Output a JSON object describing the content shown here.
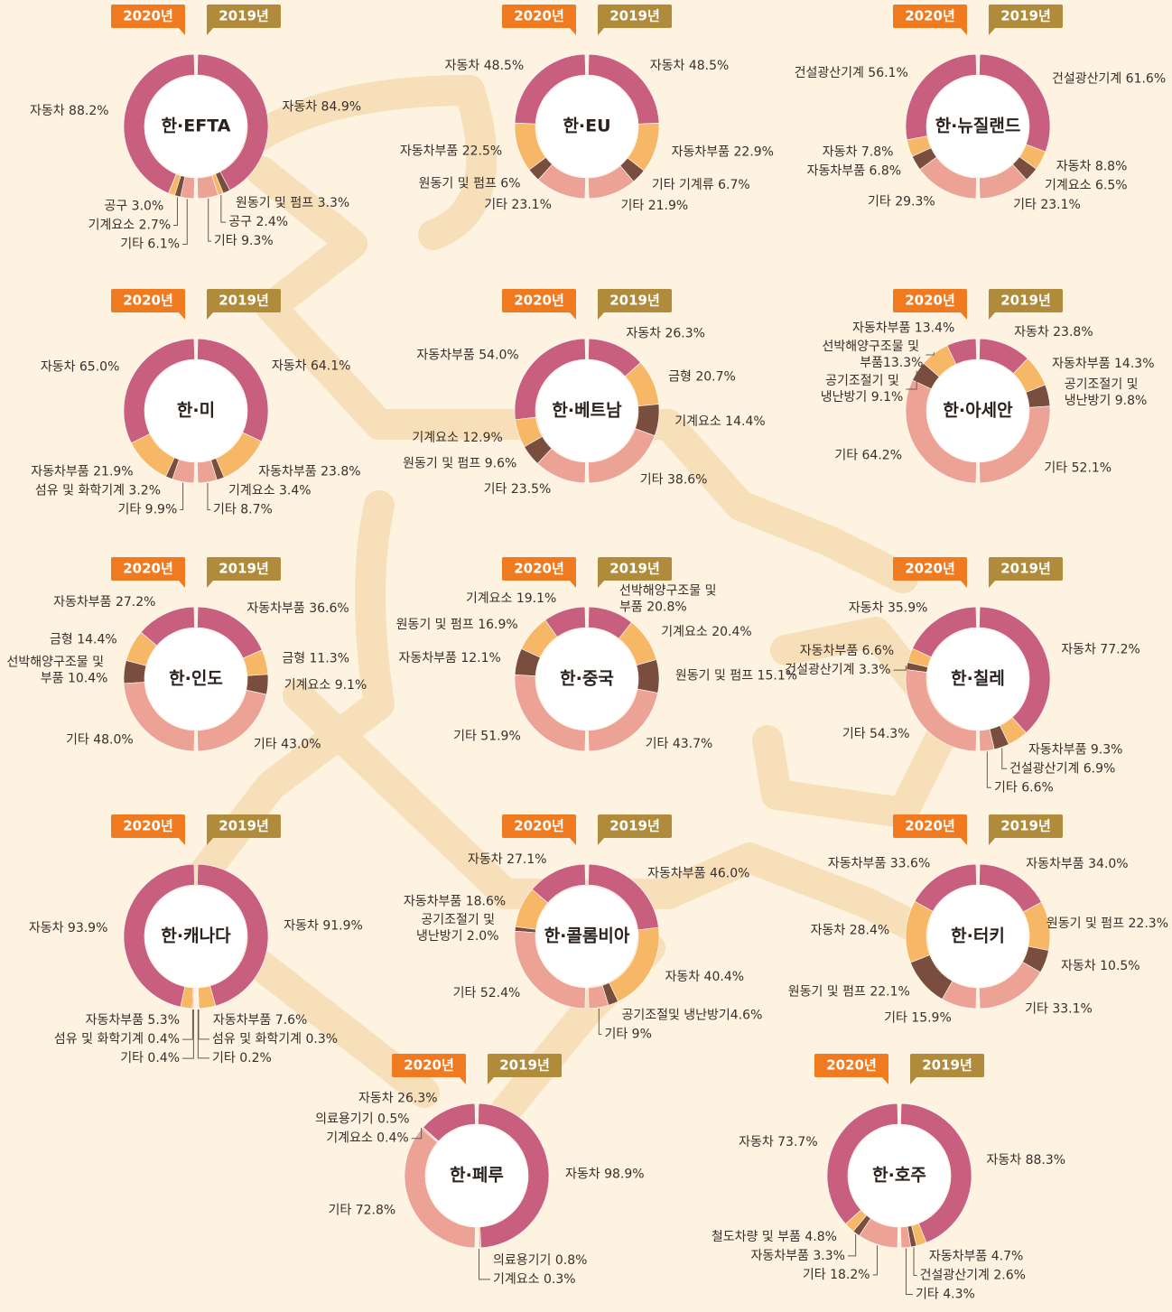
{
  "chart_data": [
    {
      "type": "split-donut",
      "title": "한·EFTA",
      "series": [
        {
          "name": "2020년",
          "color": "#f07a1f",
          "labels": [
            "자동차 88.2%",
            "공구 3.0%",
            "기계요소 2.7%",
            "기타 6.1%"
          ],
          "values": [
            88.2,
            3.0,
            2.7,
            6.1
          ],
          "colors": [
            "#c95f7f",
            "#f6b866",
            "#7a4e3f",
            "#eca295"
          ]
        },
        {
          "name": "2019년",
          "color": "#b08b3c",
          "labels": [
            "자동차 84.9%",
            "원동기 및 펌프 3.3%",
            "공구 2.4%",
            "기타 9.3%"
          ],
          "values": [
            84.9,
            3.3,
            2.4,
            9.3
          ],
          "colors": [
            "#c95f7f",
            "#7a4e3f",
            "#f6b866",
            "#eca295"
          ]
        }
      ]
    },
    {
      "type": "split-donut",
      "title": "한·EU",
      "series": [
        {
          "name": "2020년",
          "color": "#f07a1f",
          "labels": [
            "자동차 48.5%",
            "자동차부품 22.5%",
            "원동기 및 펌프 6%",
            "기타 23.1%"
          ],
          "values": [
            48.5,
            22.5,
            6,
            23.1
          ],
          "colors": [
            "#c95f7f",
            "#f6b866",
            "#7a4e3f",
            "#eca295"
          ]
        },
        {
          "name": "2019년",
          "color": "#b08b3c",
          "labels": [
            "자동차 48.5%",
            "자동차부품 22.9%",
            "기타 기계류 6.7%",
            "기타 21.9%"
          ],
          "values": [
            48.5,
            22.9,
            6.7,
            21.9
          ],
          "colors": [
            "#c95f7f",
            "#f6b866",
            "#7a4e3f",
            "#eca295"
          ]
        }
      ]
    },
    {
      "type": "split-donut",
      "title": "한·뉴질랜드",
      "series": [
        {
          "name": "2020년",
          "color": "#f07a1f",
          "labels": [
            "건설광산기계 56.1%",
            "자동차 7.8%",
            "자동차부품 6.8%",
            "기타 29.3%"
          ],
          "values": [
            56.1,
            7.8,
            6.8,
            29.3
          ],
          "colors": [
            "#c95f7f",
            "#f6b866",
            "#7a4e3f",
            "#eca295"
          ]
        },
        {
          "name": "2019년",
          "color": "#b08b3c",
          "labels": [
            "건설광산기계 61.6%",
            "자동차 8.8%",
            "기계요소 6.5%",
            "기타 23.1%"
          ],
          "values": [
            61.6,
            8.8,
            6.5,
            23.1
          ],
          "colors": [
            "#c95f7f",
            "#f6b866",
            "#7a4e3f",
            "#eca295"
          ]
        }
      ]
    },
    {
      "type": "split-donut",
      "title": "한·미",
      "series": [
        {
          "name": "2020년",
          "color": "#f07a1f",
          "labels": [
            "자동차 65.0%",
            "자동차부품 21.9%",
            "섬유 및 화학기계 3.2%",
            "기타 9.9%"
          ],
          "values": [
            65.0,
            21.9,
            3.2,
            9.9
          ],
          "colors": [
            "#c95f7f",
            "#f6b866",
            "#7a4e3f",
            "#eca295"
          ]
        },
        {
          "name": "2019년",
          "color": "#b08b3c",
          "labels": [
            "자동차 64.1%",
            "자동차부품 23.8%",
            "기계요소 3.4%",
            "기타 8.7%"
          ],
          "values": [
            64.1,
            23.8,
            3.4,
            8.7
          ],
          "colors": [
            "#c95f7f",
            "#f6b866",
            "#7a4e3f",
            "#eca295"
          ]
        }
      ]
    },
    {
      "type": "split-donut",
      "title": "한·베트남",
      "series": [
        {
          "name": "2020년",
          "color": "#f07a1f",
          "labels": [
            "자동차부품 54.0%",
            "기계요소 12.9%",
            "원동기 및 펌프 9.6%",
            "기타 23.5%"
          ],
          "values": [
            54.0,
            12.9,
            9.6,
            23.5
          ],
          "colors": [
            "#c95f7f",
            "#f6b866",
            "#7a4e3f",
            "#eca295"
          ]
        },
        {
          "name": "2019년",
          "color": "#b08b3c",
          "labels": [
            "자동차 26.3%",
            "금형 20.7%",
            "기계요소 14.4%",
            "기타 38.6%"
          ],
          "values": [
            26.3,
            20.7,
            14.4,
            38.6
          ],
          "colors": [
            "#c95f7f",
            "#f6b866",
            "#7a4e3f",
            "#eca295"
          ]
        }
      ]
    },
    {
      "type": "split-donut",
      "title": "한·아세안",
      "series": [
        {
          "name": "2020년",
          "color": "#f07a1f",
          "labels": [
            "자동차부품 13.4%",
            "선박해양구조물 및 부품13.3%",
            "공기조절기 및 냉난방기 9.1%",
            "기타 64.2%"
          ],
          "values": [
            13.4,
            13.3,
            9.1,
            64.2
          ],
          "colors": [
            "#c95f7f",
            "#f6b866",
            "#7a4e3f",
            "#eca295"
          ]
        },
        {
          "name": "2019년",
          "color": "#b08b3c",
          "labels": [
            "자동차 23.8%",
            "자동차부품 14.3%",
            "공기조절기 및 냉난방기 9.8%",
            "기타 52.1%"
          ],
          "values": [
            23.8,
            14.3,
            9.8,
            52.1
          ],
          "colors": [
            "#c95f7f",
            "#f6b866",
            "#7a4e3f",
            "#eca295"
          ]
        }
      ]
    },
    {
      "type": "split-donut",
      "title": "한·인도",
      "series": [
        {
          "name": "2020년",
          "color": "#f07a1f",
          "labels": [
            "자동차부품 27.2%",
            "금형 14.4%",
            "선박해양구조물 및 부품 10.4%",
            "기타 48.0%"
          ],
          "values": [
            27.2,
            14.4,
            10.4,
            48.0
          ],
          "colors": [
            "#c95f7f",
            "#f6b866",
            "#7a4e3f",
            "#eca295"
          ]
        },
        {
          "name": "2019년",
          "color": "#b08b3c",
          "labels": [
            "자동차부품 36.6%",
            "금형 11.3%",
            "기계요소 9.1%",
            "기타 43.0%"
          ],
          "values": [
            36.6,
            11.3,
            9.1,
            43.0
          ],
          "colors": [
            "#c95f7f",
            "#f6b866",
            "#7a4e3f",
            "#eca295"
          ]
        }
      ]
    },
    {
      "type": "split-donut",
      "title": "한·중국",
      "series": [
        {
          "name": "2020년",
          "color": "#f07a1f",
          "labels": [
            "기계요소 19.1%",
            "원동기 및 펌프 16.9%",
            "자동차부품 12.1%",
            "기타 51.9%"
          ],
          "values": [
            19.1,
            16.9,
            12.1,
            51.9
          ],
          "colors": [
            "#c95f7f",
            "#f6b866",
            "#7a4e3f",
            "#eca295"
          ]
        },
        {
          "name": "2019년",
          "color": "#b08b3c",
          "labels": [
            "선박해양구조물 및 부품 20.8%",
            "기계요소 20.4%",
            "원동기 및 펌프 15.1%",
            "기타 43.7%"
          ],
          "values": [
            20.8,
            20.4,
            15.1,
            43.7
          ],
          "colors": [
            "#c95f7f",
            "#f6b866",
            "#7a4e3f",
            "#eca295"
          ]
        }
      ]
    },
    {
      "type": "split-donut",
      "title": "한·칠레",
      "series": [
        {
          "name": "2020년",
          "color": "#f07a1f",
          "labels": [
            "자동차 35.9%",
            "자동차부품 6.6%",
            "건설광산기계 3.3%",
            "기타 54.3%"
          ],
          "values": [
            35.9,
            6.6,
            3.3,
            54.3
          ],
          "colors": [
            "#c95f7f",
            "#f6b866",
            "#7a4e3f",
            "#eca295"
          ]
        },
        {
          "name": "2019년",
          "color": "#b08b3c",
          "labels": [
            "자동차 77.2%",
            "자동차부품 9.3%",
            "건설광산기계 6.9%",
            "기타 6.6%"
          ],
          "values": [
            77.2,
            9.3,
            6.9,
            6.6
          ],
          "colors": [
            "#c95f7f",
            "#f6b866",
            "#7a4e3f",
            "#eca295"
          ]
        }
      ]
    },
    {
      "type": "split-donut",
      "title": "한·캐나다",
      "series": [
        {
          "name": "2020년",
          "color": "#f07a1f",
          "labels": [
            "자동차 93.9%",
            "자동차부품 5.3%",
            "섬유 및 화학기계 0.4%",
            "기타 0.4%"
          ],
          "values": [
            93.9,
            5.3,
            0.4,
            0.4
          ],
          "colors": [
            "#c95f7f",
            "#f6b866",
            "#7a4e3f",
            "#eca295"
          ]
        },
        {
          "name": "2019년",
          "color": "#b08b3c",
          "labels": [
            "자동차 91.9%",
            "자동차부품 7.6%",
            "섬유 및 화학기계 0.3%",
            "기타 0.2%"
          ],
          "values": [
            91.9,
            7.6,
            0.3,
            0.2
          ],
          "colors": [
            "#c95f7f",
            "#f6b866",
            "#7a4e3f",
            "#eca295"
          ]
        }
      ]
    },
    {
      "type": "split-donut",
      "title": "한·콜롬비아",
      "series": [
        {
          "name": "2020년",
          "color": "#f07a1f",
          "labels": [
            "자동차 27.1%",
            "자동차부품 18.6%",
            "공기조절기 및 냉난방기 2.0%",
            "기타 52.4%"
          ],
          "values": [
            27.1,
            18.6,
            2.0,
            52.4
          ],
          "colors": [
            "#c95f7f",
            "#f6b866",
            "#7a4e3f",
            "#eca295"
          ]
        },
        {
          "name": "2019년",
          "color": "#b08b3c",
          "labels": [
            "자동차부품 46.0%",
            "자동차 40.4%",
            "공기조절및 냉난방기4.6%",
            "기타 9%"
          ],
          "values": [
            46.0,
            40.4,
            4.6,
            9
          ],
          "colors": [
            "#c95f7f",
            "#f6b866",
            "#7a4e3f",
            "#eca295"
          ]
        }
      ]
    },
    {
      "type": "split-donut",
      "title": "한·터키",
      "series": [
        {
          "name": "2020년",
          "color": "#f07a1f",
          "labels": [
            "자동차부품 33.6%",
            "자동차 28.4%",
            "원동기 및 펌프 22.1%",
            "기타 15.9%"
          ],
          "values": [
            33.6,
            28.4,
            22.1,
            15.9
          ],
          "colors": [
            "#c95f7f",
            "#f6b866",
            "#7a4e3f",
            "#eca295"
          ]
        },
        {
          "name": "2019년",
          "color": "#b08b3c",
          "labels": [
            "자동차부품 34.0%",
            "원동기 및 펌프 22.3%",
            "자동차 10.5%",
            "기타 33.1%"
          ],
          "values": [
            34.0,
            22.3,
            10.5,
            33.1
          ],
          "colors": [
            "#c95f7f",
            "#f6b866",
            "#7a4e3f",
            "#eca295"
          ]
        }
      ]
    },
    {
      "type": "split-donut",
      "title": "한·페루",
      "series": [
        {
          "name": "2020년",
          "color": "#f07a1f",
          "labels": [
            "자동차 26.3%",
            "의료용기기 0.5%",
            "기계요소 0.4%",
            "기타 72.8%"
          ],
          "values": [
            26.3,
            0.5,
            0.4,
            72.8
          ],
          "colors": [
            "#c95f7f",
            "#f6b866",
            "#7a4e3f",
            "#eca295"
          ]
        },
        {
          "name": "2019년",
          "color": "#b08b3c",
          "labels": [
            "자동차 98.9%",
            "의료용기기 0.8%",
            "기계요소 0.3%"
          ],
          "values": [
            98.9,
            0.8,
            0.3
          ],
          "colors": [
            "#c95f7f",
            "#f6b866",
            "#7a4e3f"
          ]
        }
      ]
    },
    {
      "type": "split-donut",
      "title": "한·호주",
      "series": [
        {
          "name": "2020년",
          "color": "#f07a1f",
          "labels": [
            "자동차 73.7%",
            "철도차량 및 부품 4.8%",
            "자동차부품 3.3%",
            "기타 18.2%"
          ],
          "values": [
            73.7,
            4.8,
            3.3,
            18.2
          ],
          "colors": [
            "#c95f7f",
            "#f6b866",
            "#7a4e3f",
            "#eca295"
          ]
        },
        {
          "name": "2019년",
          "color": "#b08b3c",
          "labels": [
            "자동차 88.3%",
            "자동차부품 4.7%",
            "건설광산기계 2.6%",
            "기타 4.3%"
          ],
          "values": [
            88.3,
            4.7,
            2.6,
            4.3
          ],
          "colors": [
            "#c95f7f",
            "#f6b866",
            "#7a4e3f",
            "#eca295"
          ]
        }
      ]
    }
  ]
}
